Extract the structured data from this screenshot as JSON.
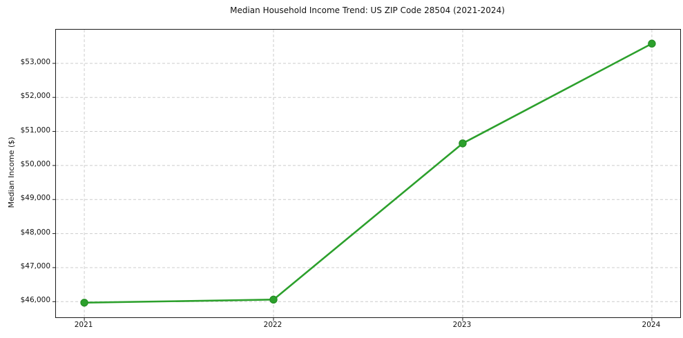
{
  "chart_data": {
    "type": "line",
    "title": "Median Household Income Trend: US ZIP Code 28504 (2021-2024)",
    "xlabel": "",
    "ylabel": "Median Income ($)",
    "x": [
      2021,
      2022,
      2023,
      2024
    ],
    "x_tick_labels": [
      "2021",
      "2022",
      "2023",
      "2024"
    ],
    "series": [
      {
        "name": "Median Household Income",
        "values": [
          45970,
          46060,
          50650,
          53580
        ]
      }
    ],
    "y_ticks": [
      46000,
      47000,
      48000,
      49000,
      50000,
      51000,
      52000,
      53000
    ],
    "y_tick_labels": [
      "$46,000",
      "$47,000",
      "$48,000",
      "$49,000",
      "$50,000",
      "$51,000",
      "$52,000",
      "$53,000"
    ],
    "xlim": [
      2020.85,
      2024.15
    ],
    "ylim": [
      45540,
      53990
    ],
    "grid": true,
    "legend": "none",
    "line_color": "#2ca02c",
    "marker_color": "#2ca02c",
    "marker_edge_color": "#218a21",
    "grid_color": "#cccccc",
    "axis_color": "#1a1a1a",
    "text_color": "#111111",
    "background_color": "#ffffff"
  }
}
